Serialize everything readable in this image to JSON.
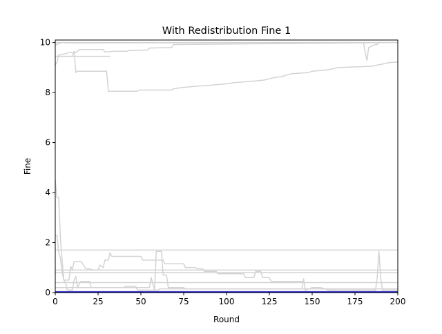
{
  "chart_data": {
    "type": "line",
    "title": "With Redistribution Fine 1",
    "xlabel": "Round",
    "ylabel": "Fine",
    "xlim": [
      0,
      200
    ],
    "ylim": [
      0,
      10.1
    ],
    "xticks": [
      0,
      25,
      50,
      75,
      100,
      125,
      150,
      175,
      200
    ],
    "yticks": [
      0,
      2,
      4,
      6,
      8,
      10
    ],
    "grid": false,
    "legend": "none",
    "colors": {
      "background_series": "#d3d3d3",
      "highlight_series": "#0000cc"
    },
    "series": [
      {
        "color": "#d3d3d3",
        "points": [
          [
            0,
            9.9
          ],
          [
            2,
            9.95
          ],
          [
            4,
            10.0
          ],
          [
            200,
            10.0
          ]
        ]
      },
      {
        "color": "#d3d3d3",
        "points": [
          [
            0,
            10.0
          ],
          [
            5,
            10.0
          ],
          [
            6,
            9.98
          ],
          [
            170,
            10.0
          ],
          [
            180,
            10.0
          ],
          [
            181,
            9.6
          ],
          [
            182,
            9.28
          ],
          [
            183,
            9.8
          ],
          [
            186,
            9.9
          ],
          [
            188,
            9.92
          ],
          [
            189,
            10.0
          ],
          [
            200,
            10.0
          ]
        ]
      },
      {
        "color": "#d3d3d3",
        "points": [
          [
            0,
            9.1
          ],
          [
            1,
            9.2
          ],
          [
            2,
            9.5
          ],
          [
            6,
            9.55
          ],
          [
            8,
            9.6
          ],
          [
            12,
            9.6
          ],
          [
            13,
            9.65
          ],
          [
            14,
            9.72
          ],
          [
            28,
            9.72
          ],
          [
            29,
            9.62
          ],
          [
            32,
            9.63
          ],
          [
            33,
            9.65
          ],
          [
            42,
            9.65
          ],
          [
            43,
            9.68
          ],
          [
            54,
            9.7
          ],
          [
            55,
            9.78
          ],
          [
            68,
            9.8
          ],
          [
            69,
            9.92
          ],
          [
            120,
            9.95
          ],
          [
            200,
            10.0
          ]
        ]
      },
      {
        "color": "#d3d3d3",
        "points": [
          [
            0,
            9.45
          ],
          [
            14,
            9.45
          ],
          [
            15,
            9.45
          ],
          [
            28,
            9.45
          ],
          [
            32,
            9.45
          ]
        ]
      },
      {
        "color": "#d3d3d3",
        "points": [
          [
            0,
            9.45
          ],
          [
            10,
            9.45
          ],
          [
            11,
            9.65
          ],
          [
            12,
            8.8
          ],
          [
            13,
            8.85
          ],
          [
            30,
            8.85
          ],
          [
            31,
            8.05
          ],
          [
            48,
            8.05
          ],
          [
            49,
            8.1
          ],
          [
            68,
            8.1
          ],
          [
            69,
            8.15
          ],
          [
            74,
            8.2
          ],
          [
            82,
            8.25
          ],
          [
            92,
            8.3
          ],
          [
            100,
            8.35
          ],
          [
            105,
            8.4
          ],
          [
            115,
            8.45
          ],
          [
            122,
            8.5
          ],
          [
            125,
            8.55
          ],
          [
            128,
            8.6
          ],
          [
            133,
            8.65
          ],
          [
            135,
            8.7
          ],
          [
            138,
            8.75
          ],
          [
            148,
            8.8
          ],
          [
            150,
            8.85
          ],
          [
            158,
            8.9
          ],
          [
            162,
            8.95
          ],
          [
            165,
            9.0
          ],
          [
            185,
            9.05
          ],
          [
            188,
            9.1
          ],
          [
            192,
            9.15
          ],
          [
            195,
            9.2
          ],
          [
            200,
            9.22
          ]
        ]
      },
      {
        "color": "#d3d3d3",
        "points": [
          [
            0,
            4.5
          ],
          [
            1,
            3.8
          ],
          [
            2,
            3.8
          ],
          [
            3,
            2.2
          ],
          [
            4,
            1.3
          ],
          [
            5,
            0.5
          ],
          [
            6,
            0.4
          ],
          [
            200,
            0.4
          ]
        ]
      },
      {
        "color": "#d3d3d3",
        "points": [
          [
            0,
            1.7
          ],
          [
            200,
            1.7
          ]
        ]
      },
      {
        "color": "#d3d3d3",
        "points": [
          [
            0,
            0.9
          ],
          [
            200,
            0.9
          ]
        ]
      },
      {
        "color": "#d3d3d3",
        "points": [
          [
            0,
            0.8
          ],
          [
            200,
            0.8
          ]
        ]
      },
      {
        "color": "#d3d3d3",
        "points": [
          [
            0,
            2.3
          ],
          [
            1,
            2.3
          ],
          [
            2,
            1.6
          ],
          [
            3,
            1.4
          ],
          [
            4,
            0.8
          ],
          [
            5,
            0.5
          ],
          [
            8,
            0.5
          ],
          [
            9,
            1.05
          ],
          [
            10,
            0.9
          ],
          [
            11,
            1.25
          ],
          [
            15,
            1.25
          ],
          [
            18,
            0.95
          ],
          [
            20,
            0.95
          ],
          [
            22,
            0.9
          ],
          [
            25,
            0.9
          ],
          [
            26,
            1.1
          ],
          [
            28,
            1.0
          ],
          [
            29,
            1.3
          ],
          [
            31,
            1.3
          ],
          [
            32,
            1.6
          ],
          [
            33,
            1.45
          ],
          [
            50,
            1.45
          ],
          [
            51,
            1.3
          ],
          [
            63,
            1.3
          ],
          [
            64,
            1.15
          ],
          [
            75,
            1.15
          ],
          [
            76,
            1.0
          ],
          [
            82,
            1.0
          ],
          [
            83,
            0.95
          ],
          [
            86,
            0.95
          ],
          [
            87,
            0.85
          ],
          [
            94,
            0.85
          ],
          [
            95,
            0.75
          ],
          [
            110,
            0.75
          ],
          [
            111,
            0.6
          ],
          [
            116,
            0.6
          ],
          [
            117,
            0.85
          ],
          [
            120,
            0.85
          ],
          [
            121,
            0.6
          ],
          [
            125,
            0.6
          ],
          [
            126,
            0.45
          ],
          [
            145,
            0.45
          ]
        ]
      },
      {
        "color": "#d3d3d3",
        "points": [
          [
            0,
            0.4
          ],
          [
            5,
            0.4
          ],
          [
            6,
            0.4
          ],
          [
            7,
            0.1
          ],
          [
            10,
            0.1
          ],
          [
            11,
            0.5
          ],
          [
            12,
            0.65
          ],
          [
            13,
            0.2
          ],
          [
            15,
            0.45
          ],
          [
            20,
            0.45
          ],
          [
            21,
            0.2
          ],
          [
            55,
            0.2
          ],
          [
            56,
            0.6
          ],
          [
            58,
            0.1
          ],
          [
            59,
            1.65
          ],
          [
            62,
            1.65
          ],
          [
            63,
            0.7
          ],
          [
            65,
            0.7
          ],
          [
            66,
            0.2
          ],
          [
            75,
            0.2
          ],
          [
            76,
            0.15
          ],
          [
            100,
            0.15
          ],
          [
            144,
            0.15
          ],
          [
            145,
            0.55
          ],
          [
            146,
            0.1
          ],
          [
            150,
            0.2
          ],
          [
            155,
            0.2
          ],
          [
            160,
            0.1
          ],
          [
            187,
            0.1
          ],
          [
            188,
            0.6
          ],
          [
            189,
            1.65
          ],
          [
            190,
            0.6
          ],
          [
            191,
            0.1
          ],
          [
            200,
            0.1
          ]
        ]
      },
      {
        "color": "#d3d3d3",
        "points": [
          [
            0,
            0.2
          ],
          [
            40,
            0.2
          ],
          [
            41,
            0.25
          ],
          [
            47,
            0.25
          ],
          [
            48,
            0.1
          ],
          [
            60,
            0.1
          ],
          [
            61,
            0.15
          ],
          [
            75,
            0.15
          ],
          [
            200,
            0.15
          ]
        ]
      },
      {
        "color": "#d3d3d3",
        "points": [
          [
            0,
            0.05
          ],
          [
            200,
            0.05
          ]
        ]
      },
      {
        "color": "#0000cc",
        "points": [
          [
            0,
            0.02
          ],
          [
            200,
            0.02
          ]
        ]
      }
    ]
  }
}
